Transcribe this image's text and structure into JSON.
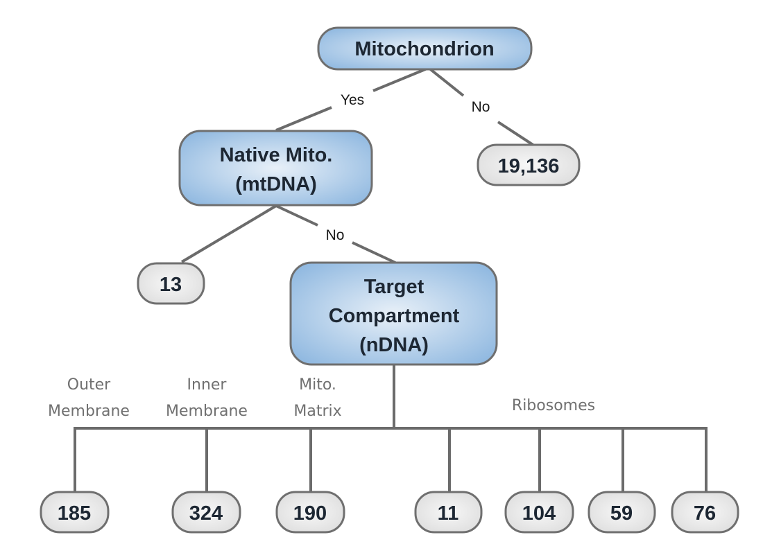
{
  "colors": {
    "decision_fill_center": "#e8f0f8",
    "decision_fill_edge": "#8fb8e0",
    "leaf_fill_center": "#f7f7f7",
    "leaf_fill_edge": "#dcdcdc",
    "border": "#6f6f6f",
    "edge": "#6b6b6b"
  },
  "nodes": {
    "mitochondrion": "Mitochondrion",
    "native_line1": "Native Mito.",
    "native_line2": "(mtDNA)",
    "target_line1": "Target",
    "target_line2": "Compartment",
    "target_line3": "(nDNA)"
  },
  "edge_labels": {
    "mito_yes": "Yes",
    "mito_no": "No",
    "native_no": "No"
  },
  "leaves": {
    "non_mito": "19,136",
    "mtdna": "13",
    "outer_membrane": "185",
    "inner_membrane": "324",
    "matrix": "190",
    "ribosomes_1": "11",
    "ribosomes_2": "104",
    "ribosomes_3": "59",
    "ribosomes_4": "76"
  },
  "categories": {
    "outer_line1": "Outer",
    "outer_line2": "Membrane",
    "inner_line1": "Inner",
    "inner_line2": "Membrane",
    "matrix_line1": "Mito.",
    "matrix_line2": "Matrix",
    "ribosomes": "Ribosomes"
  }
}
